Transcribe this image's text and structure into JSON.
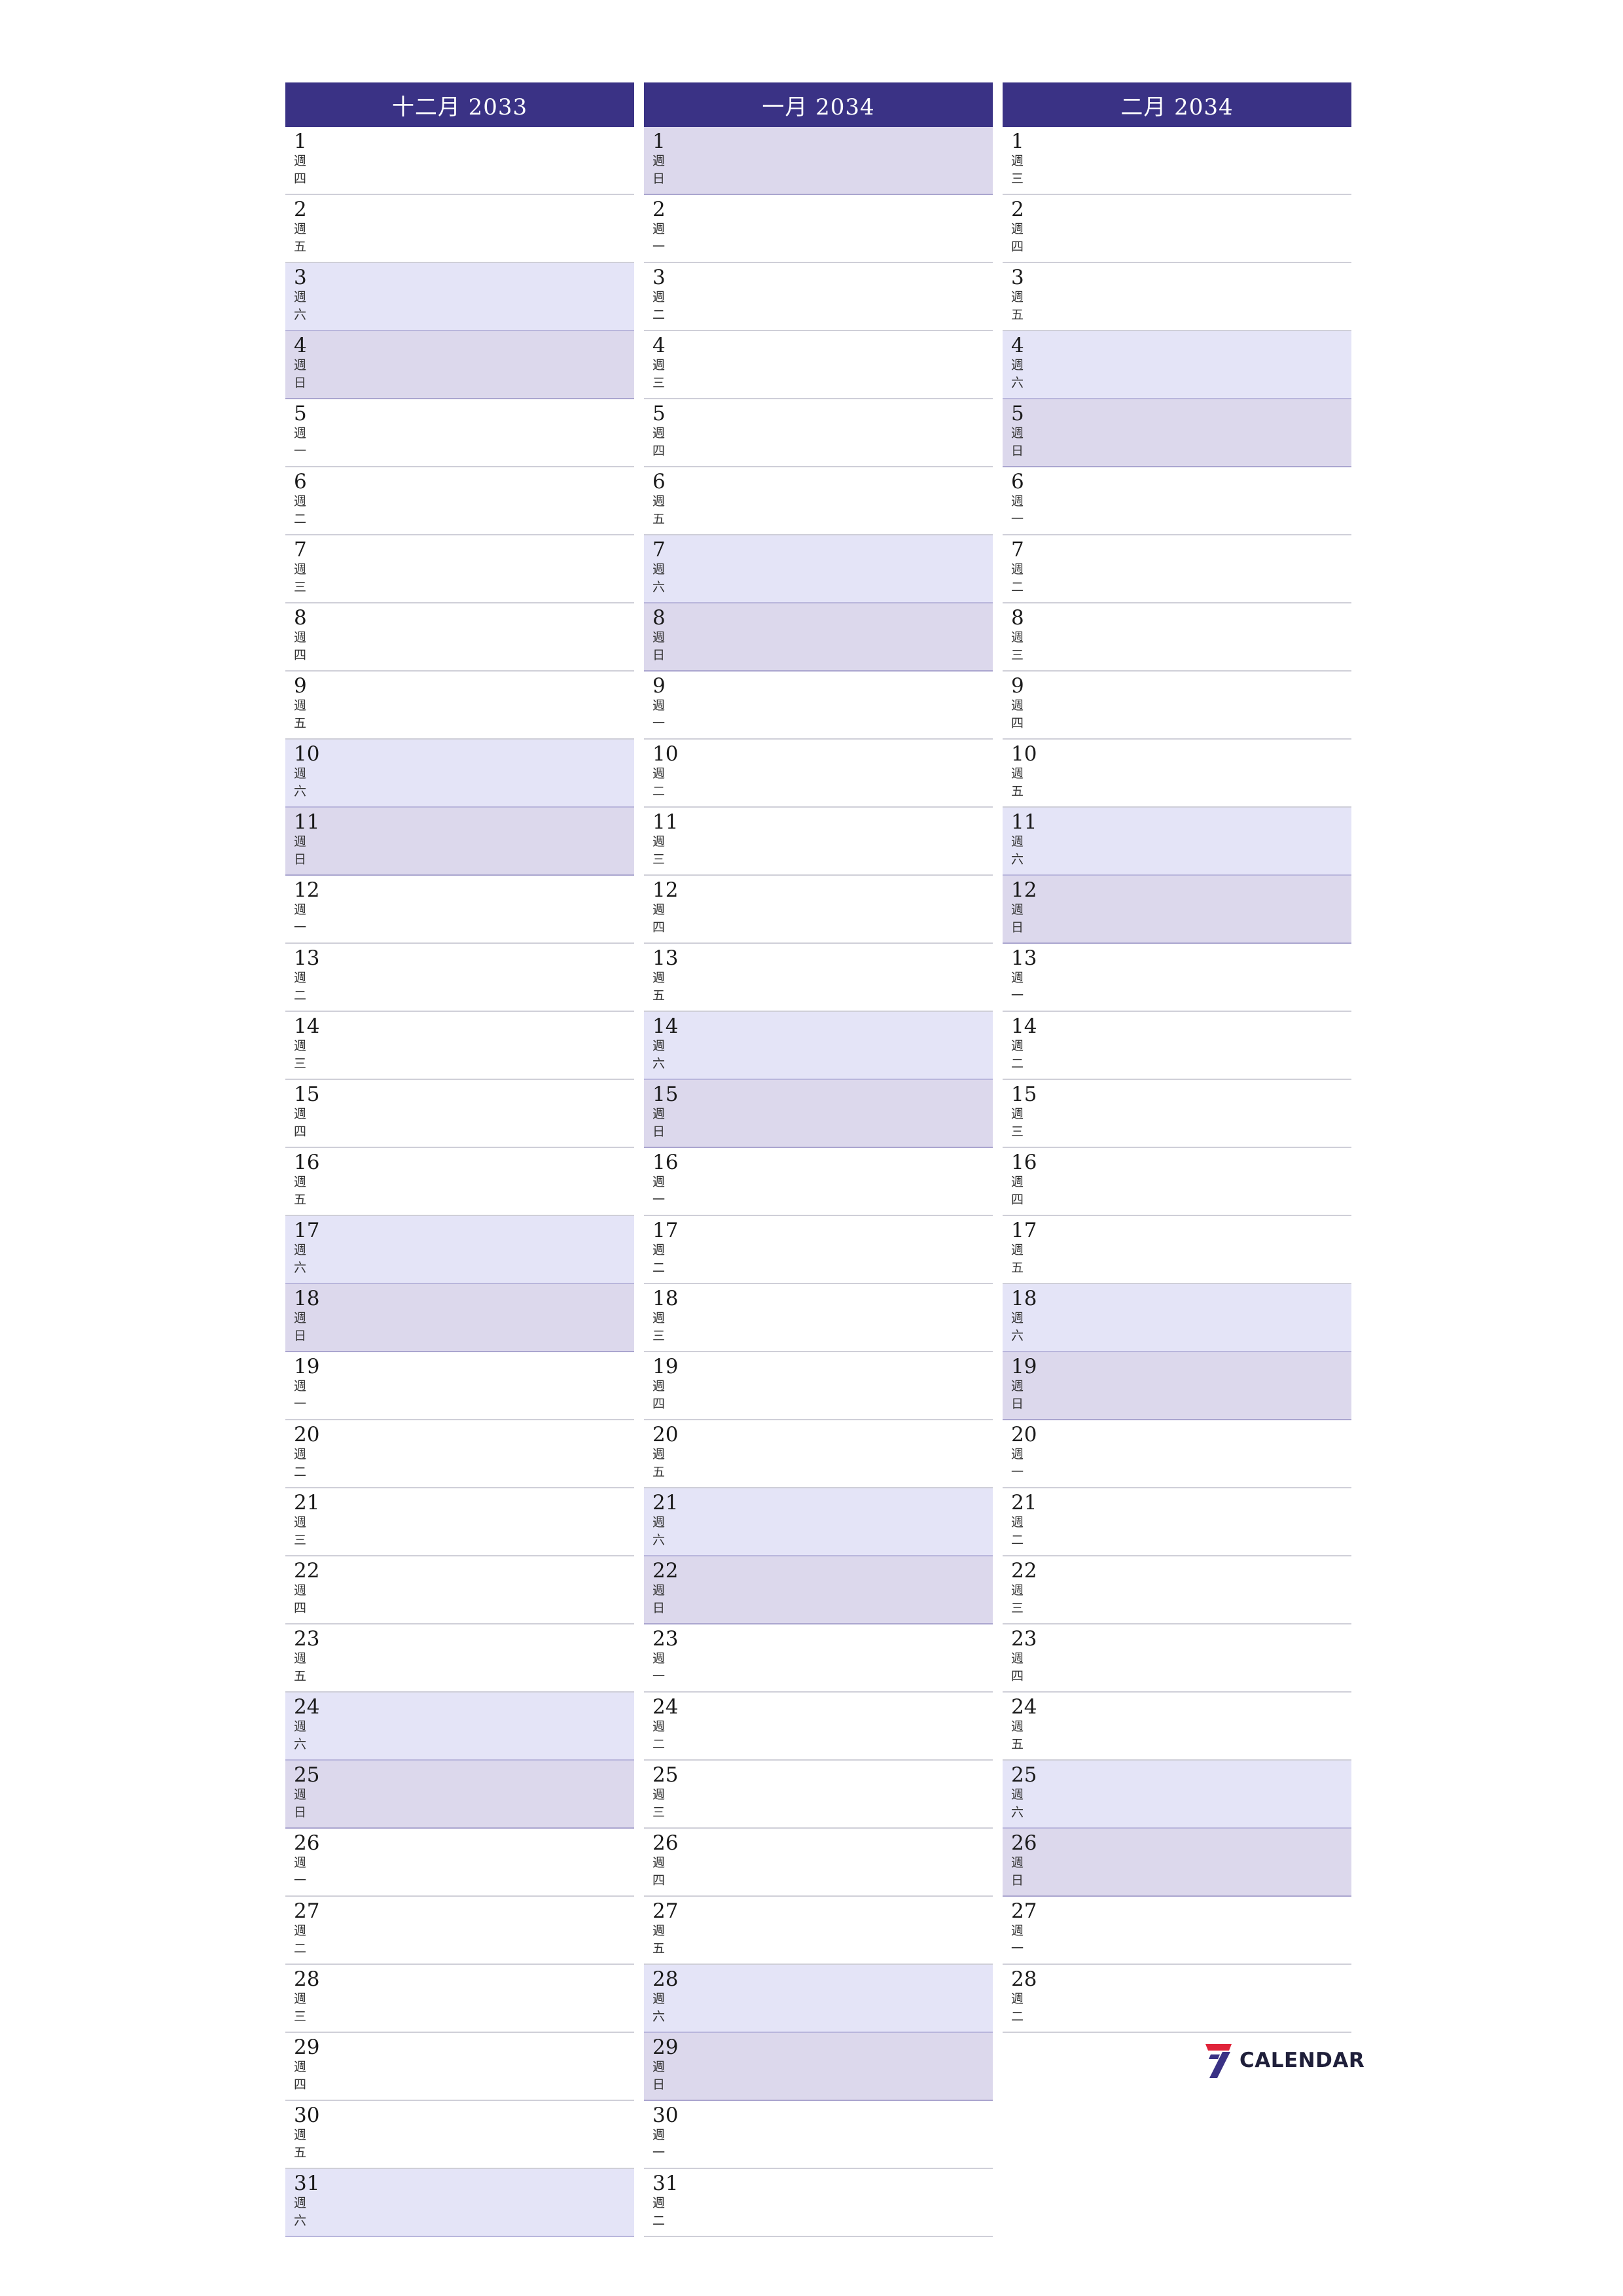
{
  "weekday_prefix": "週",
  "months": [
    {
      "title": "十二月 2033",
      "days": [
        {
          "d": "1",
          "w": "四"
        },
        {
          "d": "2",
          "w": "五"
        },
        {
          "d": "3",
          "w": "六"
        },
        {
          "d": "4",
          "w": "日"
        },
        {
          "d": "5",
          "w": "一"
        },
        {
          "d": "6",
          "w": "二"
        },
        {
          "d": "7",
          "w": "三"
        },
        {
          "d": "8",
          "w": "四"
        },
        {
          "d": "9",
          "w": "五"
        },
        {
          "d": "10",
          "w": "六"
        },
        {
          "d": "11",
          "w": "日"
        },
        {
          "d": "12",
          "w": "一"
        },
        {
          "d": "13",
          "w": "二"
        },
        {
          "d": "14",
          "w": "三"
        },
        {
          "d": "15",
          "w": "四"
        },
        {
          "d": "16",
          "w": "五"
        },
        {
          "d": "17",
          "w": "六"
        },
        {
          "d": "18",
          "w": "日"
        },
        {
          "d": "19",
          "w": "一"
        },
        {
          "d": "20",
          "w": "二"
        },
        {
          "d": "21",
          "w": "三"
        },
        {
          "d": "22",
          "w": "四"
        },
        {
          "d": "23",
          "w": "五"
        },
        {
          "d": "24",
          "w": "六"
        },
        {
          "d": "25",
          "w": "日"
        },
        {
          "d": "26",
          "w": "一"
        },
        {
          "d": "27",
          "w": "二"
        },
        {
          "d": "28",
          "w": "三"
        },
        {
          "d": "29",
          "w": "四"
        },
        {
          "d": "30",
          "w": "五"
        },
        {
          "d": "31",
          "w": "六"
        }
      ]
    },
    {
      "title": "一月 2034",
      "days": [
        {
          "d": "1",
          "w": "日"
        },
        {
          "d": "2",
          "w": "一"
        },
        {
          "d": "3",
          "w": "二"
        },
        {
          "d": "4",
          "w": "三"
        },
        {
          "d": "5",
          "w": "四"
        },
        {
          "d": "6",
          "w": "五"
        },
        {
          "d": "7",
          "w": "六"
        },
        {
          "d": "8",
          "w": "日"
        },
        {
          "d": "9",
          "w": "一"
        },
        {
          "d": "10",
          "w": "二"
        },
        {
          "d": "11",
          "w": "三"
        },
        {
          "d": "12",
          "w": "四"
        },
        {
          "d": "13",
          "w": "五"
        },
        {
          "d": "14",
          "w": "六"
        },
        {
          "d": "15",
          "w": "日"
        },
        {
          "d": "16",
          "w": "一"
        },
        {
          "d": "17",
          "w": "二"
        },
        {
          "d": "18",
          "w": "三"
        },
        {
          "d": "19",
          "w": "四"
        },
        {
          "d": "20",
          "w": "五"
        },
        {
          "d": "21",
          "w": "六"
        },
        {
          "d": "22",
          "w": "日"
        },
        {
          "d": "23",
          "w": "一"
        },
        {
          "d": "24",
          "w": "二"
        },
        {
          "d": "25",
          "w": "三"
        },
        {
          "d": "26",
          "w": "四"
        },
        {
          "d": "27",
          "w": "五"
        },
        {
          "d": "28",
          "w": "六"
        },
        {
          "d": "29",
          "w": "日"
        },
        {
          "d": "30",
          "w": "一"
        },
        {
          "d": "31",
          "w": "二"
        }
      ]
    },
    {
      "title": "二月 2034",
      "days": [
        {
          "d": "1",
          "w": "三"
        },
        {
          "d": "2",
          "w": "四"
        },
        {
          "d": "3",
          "w": "五"
        },
        {
          "d": "4",
          "w": "六"
        },
        {
          "d": "5",
          "w": "日"
        },
        {
          "d": "6",
          "w": "一"
        },
        {
          "d": "7",
          "w": "二"
        },
        {
          "d": "8",
          "w": "三"
        },
        {
          "d": "9",
          "w": "四"
        },
        {
          "d": "10",
          "w": "五"
        },
        {
          "d": "11",
          "w": "六"
        },
        {
          "d": "12",
          "w": "日"
        },
        {
          "d": "13",
          "w": "一"
        },
        {
          "d": "14",
          "w": "二"
        },
        {
          "d": "15",
          "w": "三"
        },
        {
          "d": "16",
          "w": "四"
        },
        {
          "d": "17",
          "w": "五"
        },
        {
          "d": "18",
          "w": "六"
        },
        {
          "d": "19",
          "w": "日"
        },
        {
          "d": "20",
          "w": "一"
        },
        {
          "d": "21",
          "w": "二"
        },
        {
          "d": "22",
          "w": "三"
        },
        {
          "d": "23",
          "w": "四"
        },
        {
          "d": "24",
          "w": "五"
        },
        {
          "d": "25",
          "w": "六"
        },
        {
          "d": "26",
          "w": "日"
        },
        {
          "d": "27",
          "w": "一"
        },
        {
          "d": "28",
          "w": "二"
        }
      ]
    }
  ],
  "colors": {
    "header_bg": "#3a3285",
    "saturday_bg": "#e4e4f7",
    "sunday_bg": "#dcd8ec",
    "logo_red": "#e0243a",
    "logo_blue": "#3a3285"
  },
  "logo": {
    "icon": "seven-logo-icon",
    "text": "CALENDAR"
  }
}
